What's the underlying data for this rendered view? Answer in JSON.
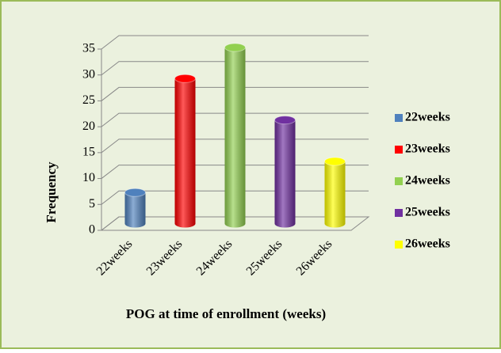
{
  "chart_data": {
    "type": "bar3d",
    "categories": [
      "22weeks",
      "23weeks",
      "24weeks",
      "25weeks",
      "26weeks"
    ],
    "values": [
      6,
      28,
      34,
      20,
      12
    ],
    "colors": [
      "#4f81bd",
      "#ff0000",
      "#92d050",
      "#7030a0",
      "#ffff00"
    ],
    "x_label": "POG at time of enrollment (weeks)",
    "y_label": "Frequency",
    "ylim": [
      0,
      35
    ],
    "yticks": [
      0,
      5,
      10,
      15,
      20,
      25,
      30,
      35
    ],
    "grid": true,
    "legend": "right"
  }
}
